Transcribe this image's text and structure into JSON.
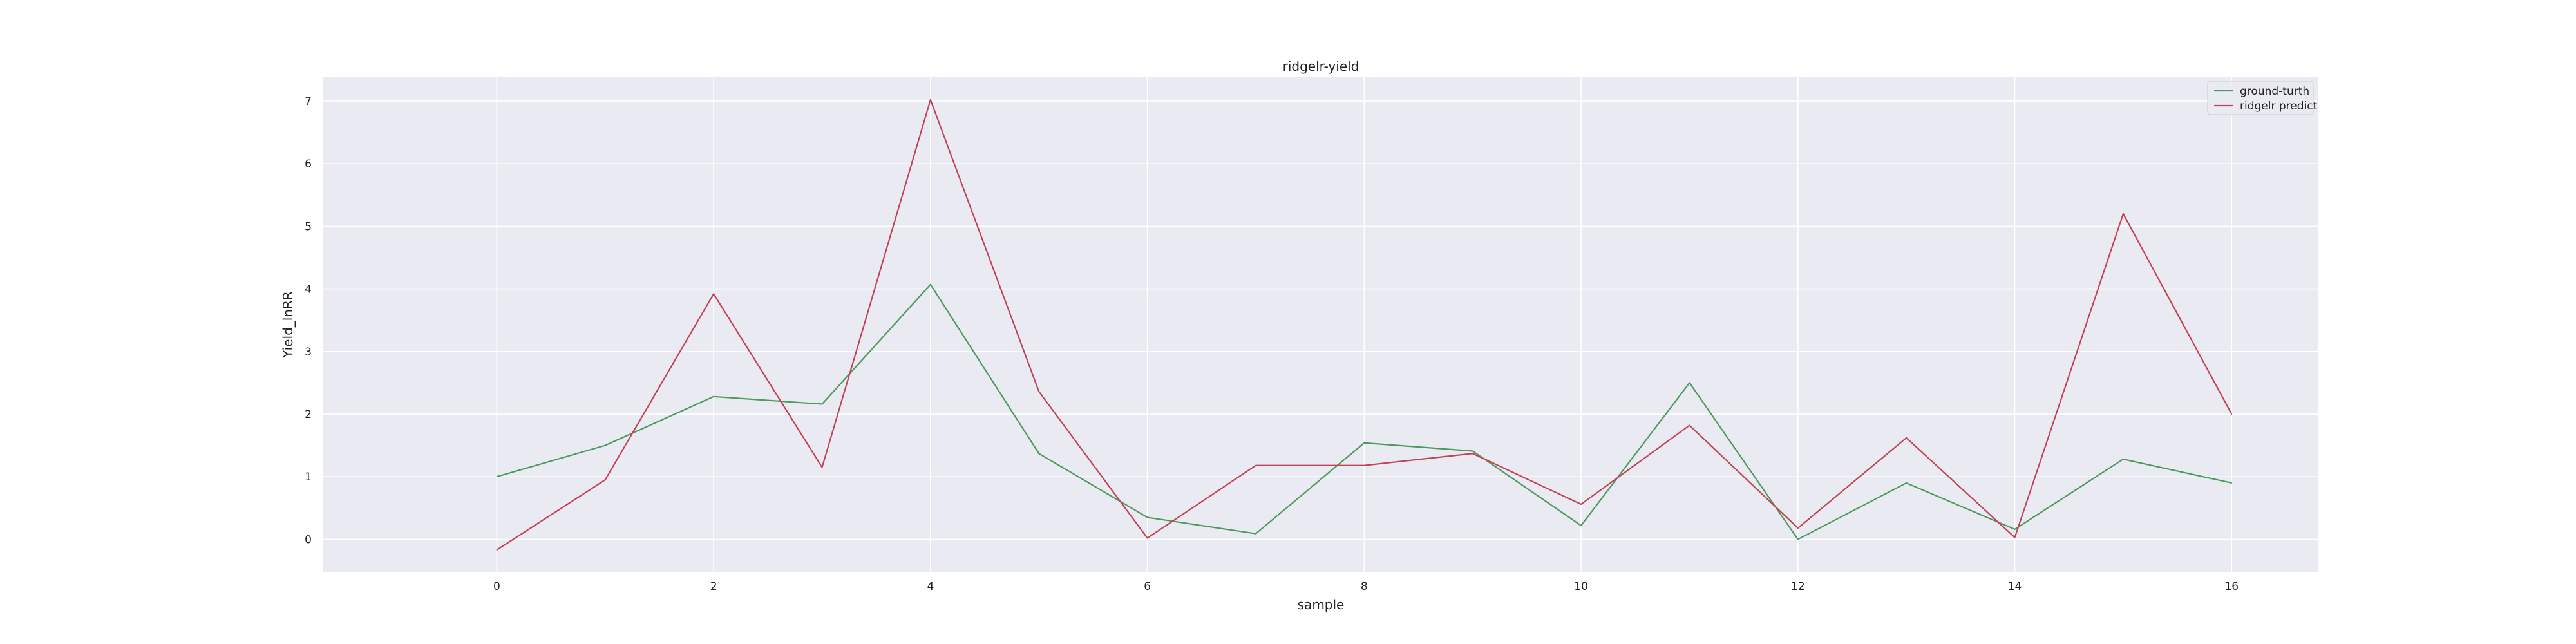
{
  "chart_data": {
    "type": "line",
    "title": "ridgelr-yield",
    "xlabel": "sample",
    "ylabel": "Yield_lnRR",
    "x": [
      0,
      1,
      2,
      3,
      4,
      5,
      6,
      7,
      8,
      9,
      10,
      11,
      12,
      13,
      14,
      15,
      16
    ],
    "xlim": [
      -1.6,
      16.8
    ],
    "ylim": [
      -0.52,
      7.38
    ],
    "xticks": [
      0,
      2,
      4,
      6,
      8,
      10,
      12,
      14,
      16
    ],
    "yticks": [
      0,
      1,
      2,
      3,
      4,
      5,
      6,
      7
    ],
    "grid": true,
    "legend_position": "top-right",
    "series": [
      {
        "name": "ground-turth",
        "color": "#4c9a5e",
        "values": [
          1.0,
          1.5,
          2.28,
          2.16,
          4.07,
          1.37,
          0.35,
          0.09,
          1.54,
          1.41,
          0.22,
          2.5,
          0.0,
          0.9,
          0.16,
          1.28,
          0.9
        ]
      },
      {
        "name": "ridgelr predict",
        "color": "#c04456",
        "values": [
          -0.17,
          0.95,
          3.92,
          1.15,
          7.02,
          2.36,
          0.02,
          1.18,
          1.18,
          1.37,
          0.56,
          1.82,
          0.18,
          1.62,
          0.03,
          5.2,
          2.0
        ]
      }
    ]
  }
}
